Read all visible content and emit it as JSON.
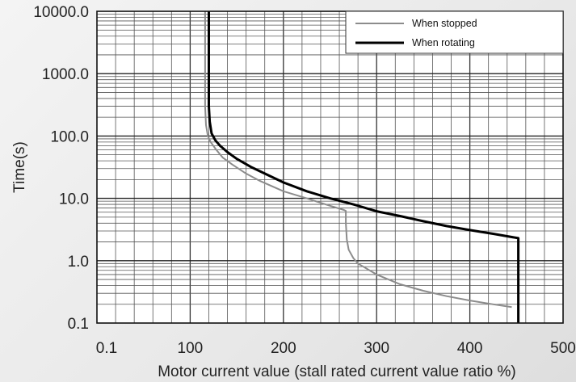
{
  "chart_data": {
    "type": "line",
    "title": "",
    "xlabel": "Motor current value (stall rated current value ratio %)",
    "ylabel": "Time(s)",
    "x_scale": "linear",
    "y_scale": "log",
    "xlim": [
      0,
      500
    ],
    "ylim": [
      0.1,
      10000
    ],
    "x_tick_labels": [
      "0.1",
      "100",
      "200",
      "300",
      "400",
      "500"
    ],
    "y_tick_labels": [
      "10000.0",
      "1000.0",
      "100.0",
      "10.0",
      "1.0",
      "0.1"
    ],
    "grid": true,
    "legend_position": "top-right",
    "series": [
      {
        "name": "When stopped",
        "color": "#8c8c8c",
        "points": [
          [
            116,
            10000
          ],
          [
            116,
            1000
          ],
          [
            116,
            300
          ],
          [
            117,
            150
          ],
          [
            119,
            100
          ],
          [
            122,
            80
          ],
          [
            128,
            60
          ],
          [
            135,
            45
          ],
          [
            145,
            35
          ],
          [
            160,
            25
          ],
          [
            175,
            19
          ],
          [
            200,
            13
          ],
          [
            225,
            10
          ],
          [
            250,
            7.6
          ],
          [
            265,
            6.5
          ],
          [
            267,
            6.3
          ],
          [
            267,
            4
          ],
          [
            268,
            2.2
          ],
          [
            270,
            1.5
          ],
          [
            275,
            1.1
          ],
          [
            280,
            0.9
          ],
          [
            300,
            0.6
          ],
          [
            325,
            0.42
          ],
          [
            350,
            0.33
          ],
          [
            375,
            0.27
          ],
          [
            400,
            0.23
          ],
          [
            425,
            0.2
          ],
          [
            445,
            0.18
          ]
        ]
      },
      {
        "name": "When rotating",
        "color": "#000000",
        "points": [
          [
            120,
            10000
          ],
          [
            120,
            1000
          ],
          [
            120,
            300
          ],
          [
            121,
            170
          ],
          [
            123,
            110
          ],
          [
            127,
            85
          ],
          [
            132,
            70
          ],
          [
            140,
            55
          ],
          [
            150,
            43
          ],
          [
            165,
            32
          ],
          [
            180,
            25
          ],
          [
            200,
            18
          ],
          [
            225,
            13
          ],
          [
            250,
            10
          ],
          [
            275,
            8
          ],
          [
            300,
            6.2
          ],
          [
            325,
            5.2
          ],
          [
            350,
            4.3
          ],
          [
            375,
            3.6
          ],
          [
            400,
            3.1
          ],
          [
            425,
            2.7
          ],
          [
            452,
            2.3
          ],
          [
            452,
            0.1
          ]
        ]
      }
    ]
  }
}
